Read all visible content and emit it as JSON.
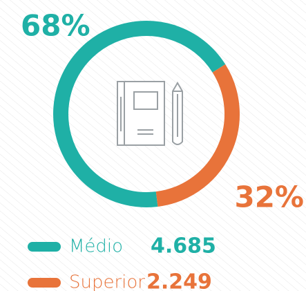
{
  "chart_data": {
    "type": "donut",
    "categories": [
      "Médio",
      "Superior"
    ],
    "values": [
      68,
      32
    ],
    "value_labels": [
      "68%",
      "32%"
    ],
    "colors": [
      "#1fb0a6",
      "#e8733a"
    ],
    "counts": [
      4685,
      2249
    ],
    "count_labels": [
      "4.685",
      "2.249"
    ]
  }
}
